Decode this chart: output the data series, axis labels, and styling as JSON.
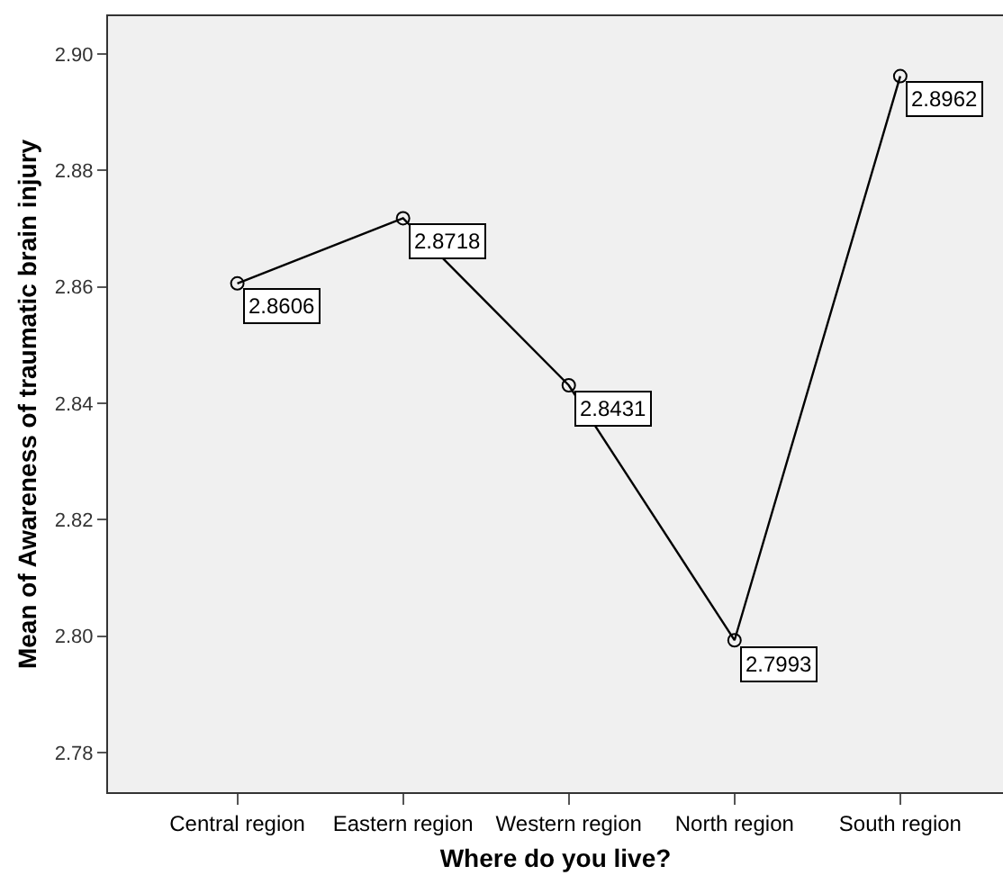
{
  "chart_data": {
    "type": "line",
    "xlabel": "Where do you live?",
    "ylabel": "Mean of Awareness of traumatic brain injury",
    "categories": [
      "Central region",
      "Eastern region",
      "Western region",
      "North region",
      "South region"
    ],
    "values": [
      2.8606,
      2.8718,
      2.8431,
      2.7993,
      2.8962
    ],
    "color": "#000000",
    "marker": "circle",
    "line_style": "solid",
    "data_labels": true,
    "grid": false,
    "legend": false,
    "ylim": [
      2.7732,
      2.9065
    ],
    "yticks": [
      {
        "value": 2.78,
        "label": "2.78"
      },
      {
        "value": 2.8,
        "label": "2.80"
      },
      {
        "value": 2.82,
        "label": "2.82"
      },
      {
        "value": 2.84,
        "label": "2.84"
      },
      {
        "value": 2.86,
        "label": "2.86"
      },
      {
        "value": 2.88,
        "label": "2.88"
      },
      {
        "value": 2.9,
        "label": "2.90"
      }
    ]
  }
}
